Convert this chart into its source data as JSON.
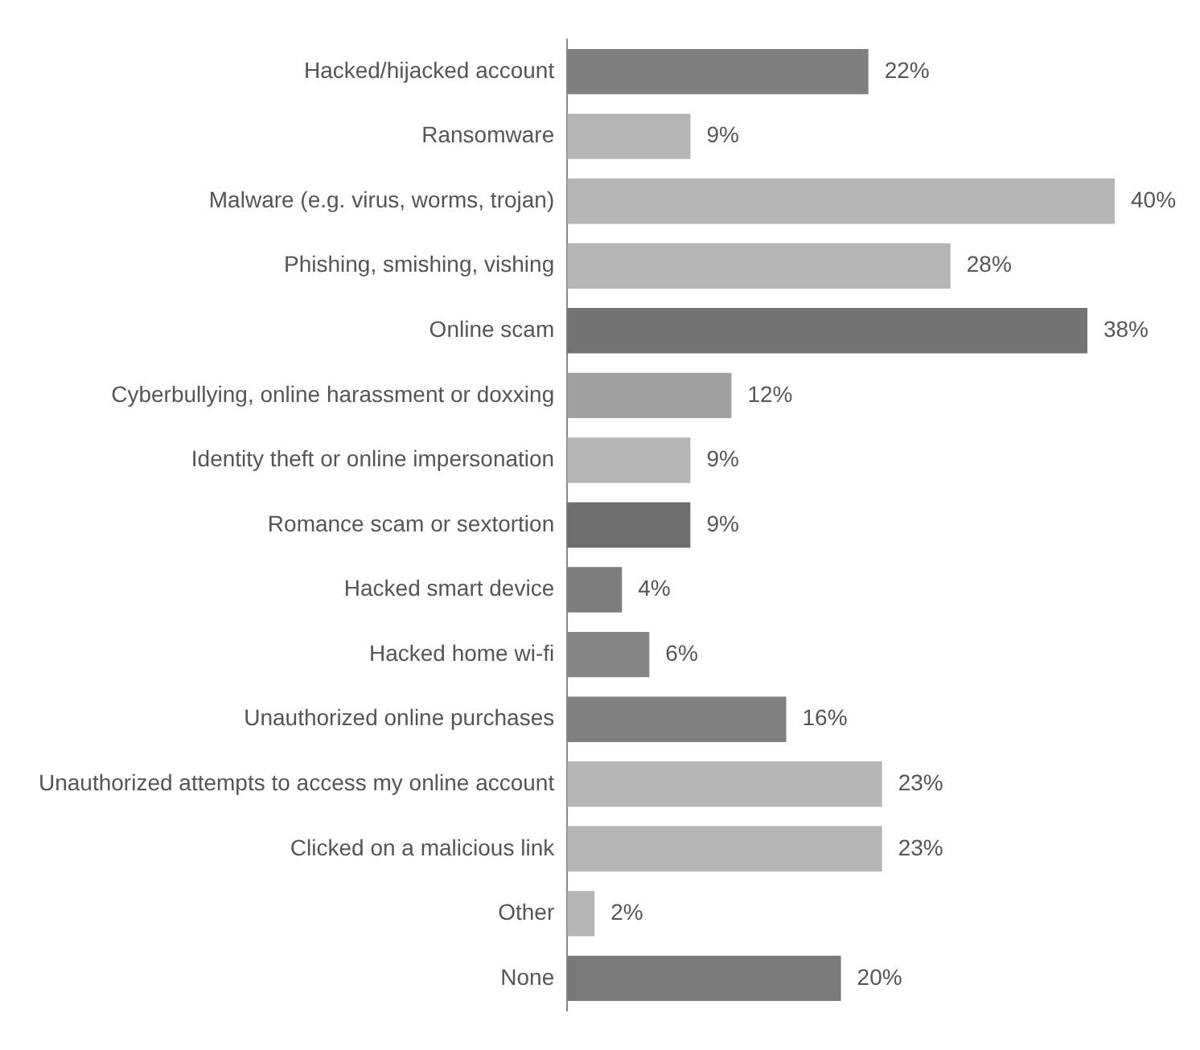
{
  "chart_data": {
    "type": "bar",
    "orientation": "horizontal",
    "categories": [
      "Hacked/hijacked account",
      "Ransomware",
      "Malware (e.g. virus, worms, trojan)",
      "Phishing, smishing, vishing",
      "Online scam",
      "Cyberbullying, online harassment or doxxing",
      "Identity theft or online impersonation",
      "Romance scam or sextortion",
      "Hacked smart device",
      "Hacked home wi-fi",
      "Unauthorized online purchases",
      "Unauthorized attempts to access my online account",
      "Clicked on a malicious link",
      "Other",
      "None"
    ],
    "values": [
      22,
      9,
      40,
      28,
      38,
      12,
      9,
      9,
      4,
      6,
      16,
      23,
      23,
      2,
      20
    ],
    "value_labels": [
      "22%",
      "9%",
      "40%",
      "28%",
      "38%",
      "12%",
      "9%",
      "9%",
      "4%",
      "6%",
      "16%",
      "23%",
      "23%",
      "2%",
      "20%"
    ],
    "colors": [
      "#7f7f7f",
      "#b5b5b5",
      "#b5b5b5",
      "#b5b5b5",
      "#737373",
      "#a0a0a0",
      "#b5b5b5",
      "#6e6e6e",
      "#7d7d7d",
      "#858585",
      "#808080",
      "#b5b5b5",
      "#b5b5b5",
      "#b5b5b5",
      "#7a7a7a"
    ],
    "tick_labels": "y",
    "grid": false,
    "legend": false
  }
}
